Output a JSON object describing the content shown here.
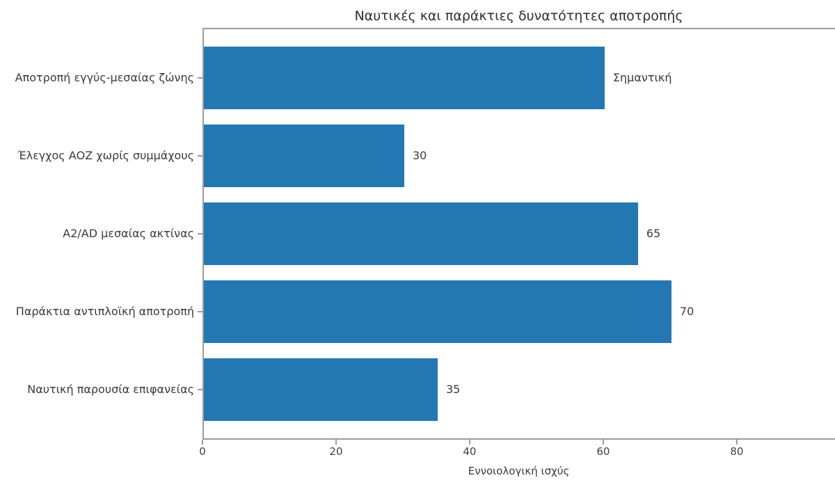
{
  "chart_data": {
    "type": "bar",
    "orientation": "horizontal",
    "title": "Ναυτικές και παράκτιες δυνατότητες αποτροπής",
    "xlabel": "Εννοιολογική ισχύς",
    "ylabel": "",
    "categories": [
      "Αποτροπή εγγύς-μεσαίας ζώνης",
      "Έλεγχος ΑΟΖ χωρίς συμμάχους",
      "A2/AD μεσαίας ακτίνας",
      "Παράκτια αντιπλοϊκή αποτροπή",
      "Ναυτική παρουσία επιφανείας"
    ],
    "values": [
      60,
      30,
      65,
      70,
      35
    ],
    "bar_labels": [
      "Σημαντική",
      "30",
      "65",
      "70",
      "35"
    ],
    "xticks": [
      0,
      20,
      40,
      60,
      80
    ],
    "xlim": [
      0,
      94.7
    ],
    "grid": false,
    "legend": "none",
    "bar_color": "#2378b4"
  }
}
